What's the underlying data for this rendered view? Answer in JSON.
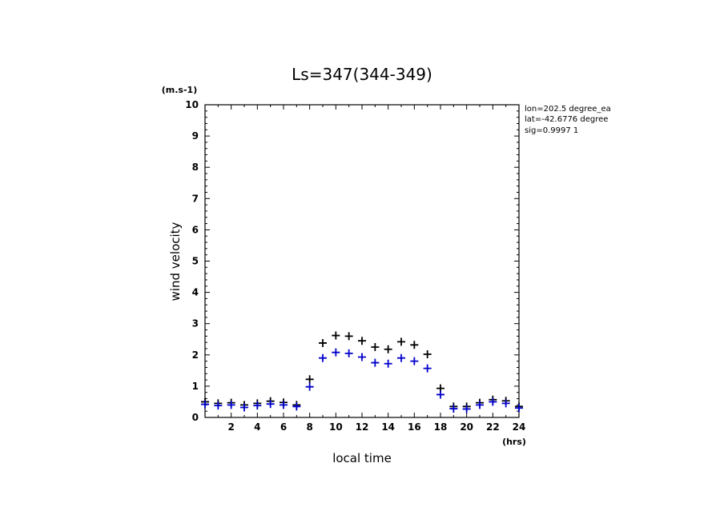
{
  "chart_data": {
    "type": "scatter",
    "title": "Ls=347(344-349)",
    "xlabel": "local time",
    "ylabel": "wind velocity",
    "x_unit": "(hrs)",
    "y_unit": "(m.s-1)",
    "xlim": [
      0,
      24
    ],
    "ylim": [
      0,
      10
    ],
    "x_ticks": [
      2,
      4,
      6,
      8,
      10,
      12,
      14,
      16,
      18,
      20,
      22,
      24
    ],
    "y_ticks": [
      0,
      1,
      2,
      3,
      4,
      5,
      6,
      7,
      8,
      9,
      10
    ],
    "grid": false,
    "marker": "plus",
    "annotations": [
      "lon=202.5 degree_ea",
      "lat=-42.6776 degree",
      "sig=0.9997 1"
    ],
    "x": [
      0,
      1,
      2,
      3,
      4,
      5,
      6,
      7,
      8,
      9,
      10,
      11,
      12,
      13,
      14,
      15,
      16,
      17,
      18,
      19,
      20,
      21,
      22,
      23,
      24
    ],
    "series": [
      {
        "color": "#000000",
        "values": [
          0.5,
          0.45,
          0.47,
          0.4,
          0.45,
          0.52,
          0.48,
          0.4,
          1.22,
          2.38,
          2.62,
          2.6,
          2.45,
          2.25,
          2.18,
          2.42,
          2.32,
          2.02,
          0.93,
          0.35,
          0.35,
          0.47,
          0.57,
          0.53,
          0.35
        ]
      },
      {
        "color": "#0000cc",
        "values": [
          0.42,
          0.38,
          0.4,
          0.32,
          0.38,
          0.43,
          0.4,
          0.35,
          0.98,
          1.9,
          2.08,
          2.05,
          1.93,
          1.75,
          1.72,
          1.9,
          1.8,
          1.57,
          0.73,
          0.28,
          0.27,
          0.4,
          0.5,
          0.45,
          0.3
        ]
      }
    ]
  }
}
